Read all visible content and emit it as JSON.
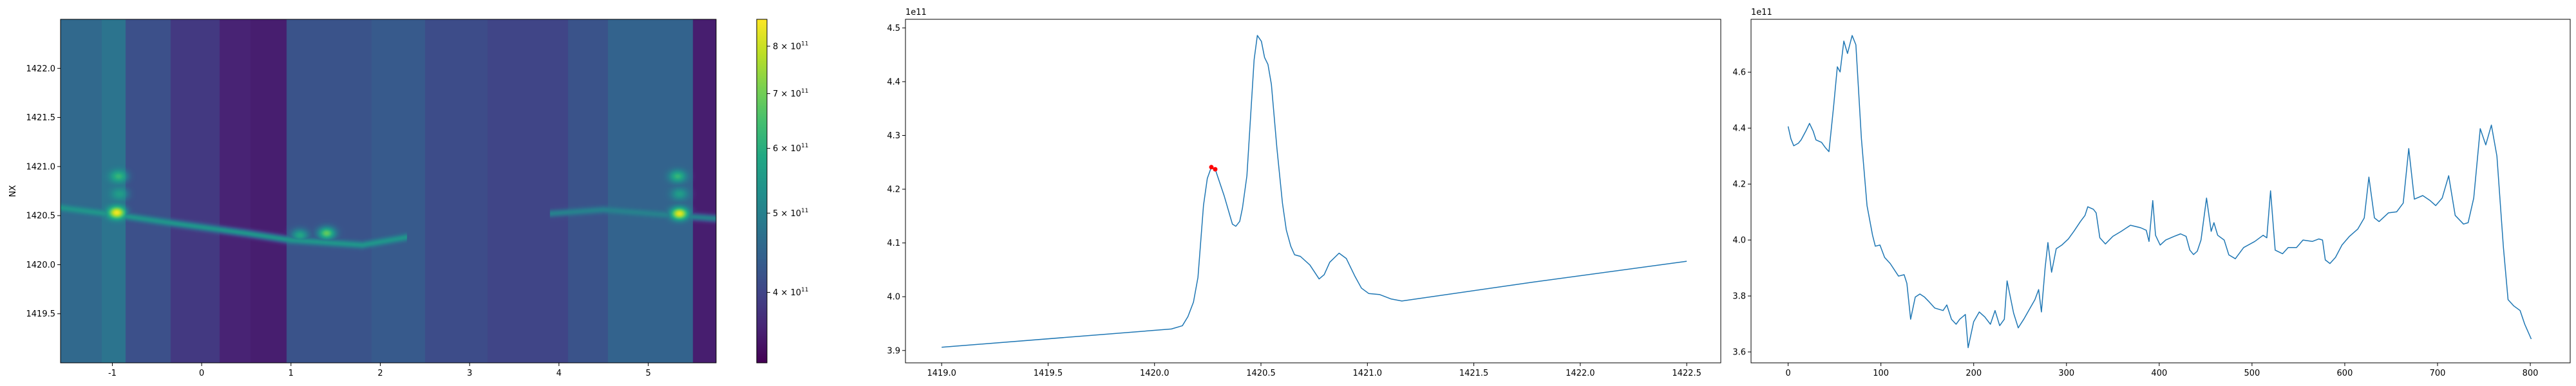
{
  "colors": {
    "line": "#1f77b4",
    "marker": "#ff0000",
    "axes": "#000000",
    "colormap": "viridis"
  },
  "chart_data": [
    {
      "type": "heatmap",
      "ylabel": "NX",
      "xlim": [
        -1.58,
        5.76
      ],
      "ylim": [
        1419.0,
        1422.5
      ],
      "xticks": [
        "-1",
        "0",
        "1",
        "2",
        "3",
        "4",
        "5"
      ],
      "xtick_values": [
        -1,
        0,
        1,
        2,
        3,
        4,
        5
      ],
      "yticks": [
        "1419.5",
        "1420.0",
        "1420.5",
        "1421.0",
        "1421.5",
        "1422.0"
      ],
      "ytick_values": [
        1419.5,
        1420.0,
        1420.5,
        1421.0,
        1421.5,
        1422.0
      ],
      "colorbar": {
        "scale": "log",
        "range": [
          328000000000.0,
          863000000000.0
        ],
        "ticks": [
          {
            "value": 400000000000.0,
            "mantissa": "4",
            "base": "10",
            "exp": "11"
          },
          {
            "value": 500000000000.0,
            "mantissa": "5",
            "base": "10",
            "exp": "11"
          },
          {
            "value": 600000000000.0,
            "mantissa": "6",
            "base": "10",
            "exp": "11"
          },
          {
            "value": 700000000000.0,
            "mantissa": "7",
            "base": "10",
            "exp": "11"
          },
          {
            "value": 800000000000.0,
            "mantissa": "8",
            "base": "10",
            "exp": "11"
          }
        ]
      },
      "column_levels": [
        {
          "x_from": -1.58,
          "x_to": -1.12,
          "value": 455000000000.0
        },
        {
          "x_from": -1.12,
          "x_to": -0.85,
          "value": 475000000000.0
        },
        {
          "x_from": -0.85,
          "x_to": -0.35,
          "value": 415000000000.0
        },
        {
          "x_from": -0.35,
          "x_to": 0.2,
          "value": 385000000000.0
        },
        {
          "x_from": 0.2,
          "x_to": 0.55,
          "value": 360000000000.0
        },
        {
          "x_from": 0.55,
          "x_to": 0.95,
          "value": 355000000000.0
        },
        {
          "x_from": 0.95,
          "x_to": 1.9,
          "value": 420000000000.0
        },
        {
          "x_from": 1.9,
          "x_to": 2.5,
          "value": 430000000000.0
        },
        {
          "x_from": 2.5,
          "x_to": 3.2,
          "value": 410000000000.0
        },
        {
          "x_from": 3.2,
          "x_to": 4.1,
          "value": 400000000000.0
        },
        {
          "x_from": 4.1,
          "x_to": 4.55,
          "value": 420000000000.0
        },
        {
          "x_from": 4.55,
          "x_to": 5.5,
          "value": 445000000000.0
        },
        {
          "x_from": 5.5,
          "x_to": 5.76,
          "value": 355000000000.0
        }
      ],
      "peaks": [
        {
          "x": -0.95,
          "y": 1420.53,
          "value": 850000000000.0
        },
        {
          "x": -0.93,
          "y": 1420.9,
          "value": 620000000000.0
        },
        {
          "x": -0.92,
          "y": 1420.72,
          "value": 560000000000.0
        },
        {
          "x": 1.4,
          "y": 1420.32,
          "value": 680000000000.0
        },
        {
          "x": 1.1,
          "y": 1420.3,
          "value": 580000000000.0
        },
        {
          "x": 5.35,
          "y": 1420.52,
          "value": 830000000000.0
        },
        {
          "x": 5.33,
          "y": 1420.9,
          "value": 620000000000.0
        },
        {
          "x": 5.35,
          "y": 1420.72,
          "value": 560000000000.0
        }
      ],
      "ridges": [
        {
          "points": [
            [
              -1.58,
              1420.58
            ],
            [
              -0.9,
              1420.5
            ],
            [
              -0.3,
              1420.42
            ],
            [
              0.5,
              1420.32
            ],
            [
              1.0,
              1420.25
            ],
            [
              1.8,
              1420.2
            ],
            [
              2.3,
              1420.28
            ]
          ],
          "value": 540000000000.0
        },
        {
          "points": [
            [
              3.9,
              1420.52
            ],
            [
              4.5,
              1420.56
            ],
            [
              5.3,
              1420.5
            ],
            [
              5.76,
              1420.47
            ]
          ],
          "value": 500000000000.0
        }
      ]
    },
    {
      "type": "line",
      "offset_text": "1e11",
      "xlim": [
        1418.83,
        1422.66
      ],
      "ylim": [
        3.877,
        4.516
      ],
      "xticks": [
        "1419.0",
        "1419.5",
        "1420.0",
        "1420.5",
        "1421.0",
        "1421.5",
        "1422.0",
        "1422.5"
      ],
      "xtick_values": [
        1419.0,
        1419.5,
        1420.0,
        1420.5,
        1421.0,
        1421.5,
        1422.0,
        1422.5
      ],
      "yticks": [
        "3.9",
        "4.0",
        "4.1",
        "4.2",
        "4.3",
        "4.4",
        "4.5"
      ],
      "ytick_values": [
        3.9,
        4.0,
        4.1,
        4.2,
        4.3,
        4.4,
        4.5
      ],
      "x": [
        1419.0,
        1420.079,
        1420.131,
        1420.157,
        1420.183,
        1420.204,
        1420.23,
        1420.248,
        1420.267,
        1420.288,
        1420.327,
        1420.366,
        1420.382,
        1420.4,
        1420.413,
        1420.434,
        1420.468,
        1420.483,
        1420.502,
        1420.517,
        1420.533,
        1420.549,
        1420.575,
        1420.601,
        1420.619,
        1420.64,
        1420.658,
        1420.685,
        1420.73,
        1420.773,
        1420.797,
        1420.823,
        1420.867,
        1420.901,
        1420.94,
        1420.972,
        1421.006,
        1421.058,
        1421.11,
        1421.162,
        1421.776,
        1422.5
      ],
      "y": [
        3.906,
        3.94,
        3.946,
        3.963,
        3.99,
        4.036,
        4.17,
        4.22,
        4.241,
        4.234,
        4.188,
        4.135,
        4.131,
        4.14,
        4.165,
        4.225,
        4.441,
        4.486,
        4.475,
        4.445,
        4.432,
        4.395,
        4.276,
        4.174,
        4.124,
        4.094,
        4.078,
        4.075,
        4.059,
        4.033,
        4.041,
        4.064,
        4.081,
        4.071,
        4.039,
        4.016,
        4.006,
        4.004,
        3.996,
        3.992,
        4.027,
        4.066
      ],
      "markers": {
        "x": [
          1420.267,
          1420.285
        ],
        "y": [
          4.241,
          4.237
        ]
      }
    },
    {
      "type": "line",
      "offset_text": "1e11",
      "xlim": [
        -40,
        843
      ],
      "ylim": [
        3.561,
        4.789
      ],
      "xticks": [
        "0",
        "100",
        "200",
        "300",
        "400",
        "500",
        "600",
        "700",
        "800"
      ],
      "xtick_values": [
        0,
        100,
        200,
        300,
        400,
        500,
        600,
        700,
        800
      ],
      "yticks": [
        "3.6",
        "3.8",
        "4.0",
        "4.2",
        "4.4",
        "4.6"
      ],
      "ytick_values": [
        3.6,
        3.8,
        4.0,
        4.2,
        4.4,
        4.6
      ],
      "x": [
        0,
        3,
        6,
        11,
        14,
        19,
        23,
        27,
        30,
        36,
        40,
        44,
        49,
        53,
        56,
        60,
        64,
        69,
        73,
        79,
        85,
        91,
        94,
        99,
        104,
        110,
        119,
        125,
        128,
        132,
        137,
        142,
        147,
        152,
        158,
        167,
        171,
        176,
        181,
        185,
        191,
        194,
        200,
        206,
        212,
        218,
        223,
        228,
        233,
        236,
        243,
        248,
        254,
        260,
        266,
        270,
        273,
        277,
        280,
        284,
        289,
        295,
        302,
        308,
        315,
        320,
        323,
        329,
        332,
        336,
        342,
        350,
        359,
        369,
        380,
        386,
        389,
        393,
        396,
        401,
        407,
        416,
        423,
        429,
        433,
        437,
        441,
        445,
        451,
        456,
        459,
        463,
        470,
        475,
        482,
        491,
        503,
        512,
        516,
        520,
        525,
        533,
        539,
        548,
        555,
        565,
        572,
        576,
        579,
        584,
        590,
        597,
        605,
        614,
        621,
        626,
        632,
        637,
        647,
        656,
        663,
        669,
        675,
        684,
        692,
        698,
        705,
        712,
        719,
        728,
        733,
        739,
        746,
        752,
        758,
        764,
        771,
        776,
        782,
        789,
        794,
        801
      ],
      "y": [
        4.406,
        4.362,
        4.337,
        4.346,
        4.358,
        4.389,
        4.417,
        4.389,
        4.358,
        4.349,
        4.331,
        4.316,
        4.477,
        4.619,
        4.601,
        4.711,
        4.667,
        4.731,
        4.698,
        4.362,
        4.123,
        4.017,
        3.978,
        3.982,
        3.938,
        3.916,
        3.871,
        3.876,
        3.845,
        3.717,
        3.796,
        3.807,
        3.796,
        3.779,
        3.757,
        3.748,
        3.768,
        3.717,
        3.699,
        3.717,
        3.734,
        3.615,
        3.708,
        3.743,
        3.725,
        3.699,
        3.748,
        3.694,
        3.717,
        3.854,
        3.739,
        3.686,
        3.717,
        3.752,
        3.787,
        3.823,
        3.743,
        3.902,
        3.991,
        3.885,
        3.969,
        3.982,
        4.004,
        4.031,
        4.066,
        4.088,
        4.119,
        4.11,
        4.097,
        4.008,
        3.986,
        4.013,
        4.031,
        4.053,
        4.044,
        4.035,
        3.995,
        4.141,
        4.017,
        3.982,
        4.0,
        4.013,
        4.022,
        4.013,
        3.964,
        3.948,
        3.96,
        4.0,
        4.15,
        4.031,
        4.062,
        4.017,
        4.0,
        3.947,
        3.933,
        3.973,
        3.995,
        4.017,
        4.008,
        4.176,
        3.964,
        3.951,
        3.973,
        3.973,
        4.0,
        3.995,
        4.004,
        4.0,
        3.929,
        3.916,
        3.938,
        3.982,
        4.013,
        4.039,
        4.079,
        4.225,
        4.079,
        4.066,
        4.097,
        4.101,
        4.132,
        4.327,
        4.146,
        4.159,
        4.141,
        4.123,
        4.15,
        4.23,
        4.088,
        4.057,
        4.062,
        4.15,
        4.398,
        4.34,
        4.411,
        4.3,
        3.973,
        3.787,
        3.765,
        3.748,
        3.699,
        3.646
      ]
    }
  ]
}
